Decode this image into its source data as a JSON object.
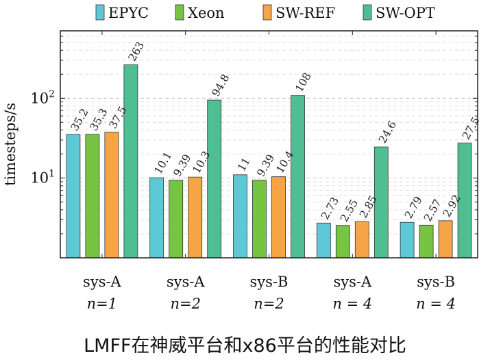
{
  "caption": "LMFF在神威平台和x86平台的性能对比",
  "chart_data": {
    "type": "bar",
    "scale": "log",
    "ylabel": "timesteps/s",
    "ylim": [
      1,
      700
    ],
    "yticks": [
      {
        "value": 10,
        "base": "10",
        "exp": "1"
      },
      {
        "value": 100,
        "base": "10",
        "exp": "2"
      }
    ],
    "legend_position": "top",
    "categories": [
      {
        "line1": "sys-A",
        "line2": "n=1"
      },
      {
        "line1": "sys-A",
        "line2": "n=2"
      },
      {
        "line1": "sys-B",
        "line2": "n=2"
      },
      {
        "line1": "sys-A",
        "line2": "n = 4"
      },
      {
        "line1": "sys-B",
        "line2": "n = 4"
      }
    ],
    "series": [
      {
        "name": "EPYC",
        "color": "#5ec9d6",
        "values": [
          35.2,
          10.1,
          11,
          2.73,
          2.79
        ],
        "labels": [
          "35.2",
          "10.1",
          "11",
          "2.73",
          "2.79"
        ]
      },
      {
        "name": "Xeon",
        "color": "#76c442",
        "values": [
          35.3,
          9.39,
          9.39,
          2.55,
          2.57
        ],
        "labels": [
          "35.3",
          "9.39",
          "9.39",
          "2.55",
          "2.57"
        ]
      },
      {
        "name": "SW-REF",
        "color": "#f5a546",
        "values": [
          37.5,
          10.3,
          10.4,
          2.85,
          2.92
        ],
        "labels": [
          "37.5",
          "10.3",
          "10.4",
          "2.85",
          "2.92"
        ]
      },
      {
        "name": "SW-OPT",
        "color": "#4fbf93",
        "values": [
          263,
          94.8,
          108,
          24.6,
          27.5
        ],
        "labels": [
          "263",
          "94.8",
          "108",
          "24.6",
          "27.5"
        ]
      }
    ]
  }
}
